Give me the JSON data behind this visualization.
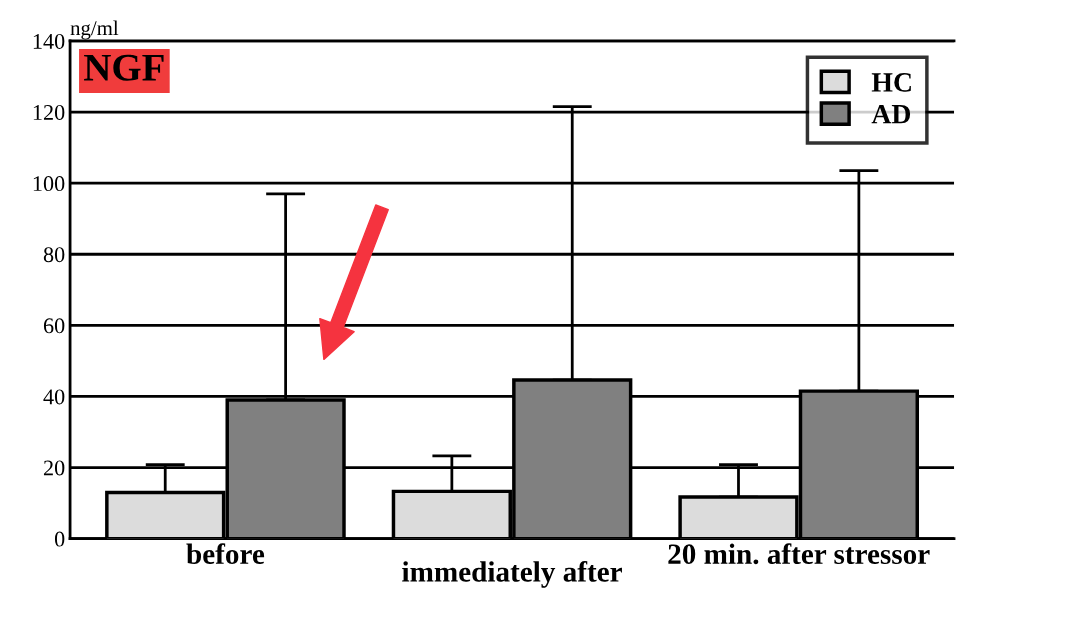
{
  "chart_data": {
    "type": "bar",
    "title": "NGF",
    "ylabel": "ng/ml",
    "categories": [
      "before",
      "immediately after",
      "20 min. after stressor"
    ],
    "series": [
      {
        "name": "HC",
        "color": "#dcdcdc",
        "values": [
          13,
          13.3,
          11.7
        ],
        "errors": [
          [
            13,
            20.8
          ],
          [
            13.3,
            23.3
          ],
          [
            11.7,
            20.8
          ]
        ]
      },
      {
        "name": "AD",
        "color": "#808080",
        "values": [
          39,
          44.6,
          41.5
        ],
        "errors": [
          [
            39,
            97
          ],
          [
            44.6,
            121.5
          ],
          [
            41.5,
            103.5
          ]
        ]
      }
    ],
    "ylim": [
      0,
      140
    ],
    "yticks": [
      0,
      20,
      40,
      60,
      80,
      100,
      120,
      140
    ],
    "grid": "y",
    "legend": "top right"
  }
}
